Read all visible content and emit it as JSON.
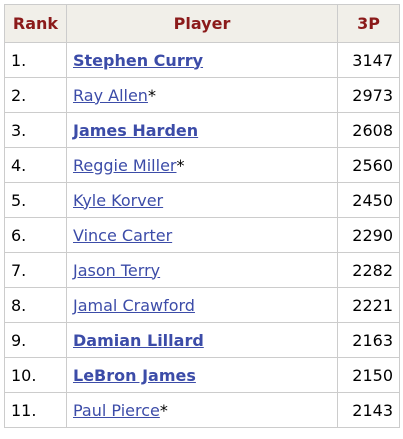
{
  "table": {
    "headers": [
      "Rank",
      "Player",
      "3P"
    ],
    "rows": [
      {
        "rank": "1.",
        "player": "Stephen Curry",
        "suffix": "",
        "bold": true,
        "value": "3147"
      },
      {
        "rank": "2.",
        "player": "Ray Allen",
        "suffix": "*",
        "bold": false,
        "value": "2973"
      },
      {
        "rank": "3.",
        "player": "James Harden",
        "suffix": "",
        "bold": true,
        "value": "2608"
      },
      {
        "rank": "4.",
        "player": "Reggie Miller",
        "suffix": "*",
        "bold": false,
        "value": "2560"
      },
      {
        "rank": "5.",
        "player": "Kyle Korver",
        "suffix": "",
        "bold": false,
        "value": "2450"
      },
      {
        "rank": "6.",
        "player": "Vince Carter",
        "suffix": "",
        "bold": false,
        "value": "2290"
      },
      {
        "rank": "7.",
        "player": "Jason Terry",
        "suffix": "",
        "bold": false,
        "value": "2282"
      },
      {
        "rank": "8.",
        "player": "Jamal Crawford",
        "suffix": "",
        "bold": false,
        "value": "2221"
      },
      {
        "rank": "9.",
        "player": "Damian Lillard",
        "suffix": "",
        "bold": true,
        "value": "2163"
      },
      {
        "rank": "10.",
        "player": "LeBron James",
        "suffix": "",
        "bold": true,
        "value": "2150"
      },
      {
        "rank": "11.",
        "player": "Paul Pierce",
        "suffix": "*",
        "bold": false,
        "value": "2143"
      }
    ]
  },
  "colors": {
    "header_text": "#8b1a1a",
    "header_bg": "#f1efe9",
    "link": "#3c4ca8",
    "border": "#cccccc"
  }
}
